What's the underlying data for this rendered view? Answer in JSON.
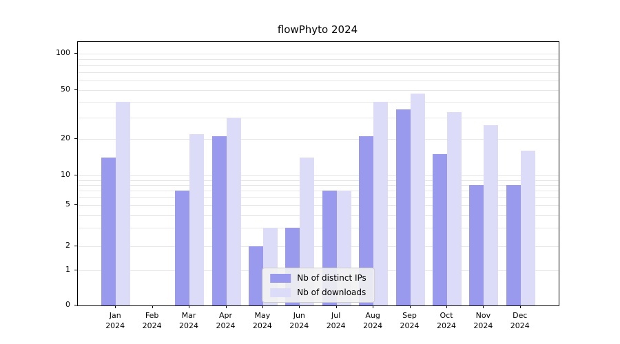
{
  "title": "flowPhyto 2024",
  "colors": {
    "series_ips": "#9999ee",
    "series_downloads": "#dcdcf9",
    "grid": "#e6e6e6",
    "legend_bg": "#f2f2f2",
    "legend_border": "#cccccc",
    "axis": "#000000"
  },
  "chart_data": {
    "type": "bar",
    "title": "flowPhyto 2024",
    "months": [
      "Jan",
      "Feb",
      "Mar",
      "Apr",
      "May",
      "Jun",
      "Jul",
      "Aug",
      "Sep",
      "Oct",
      "Nov",
      "Dec"
    ],
    "year": "2024",
    "categories": [
      "Jan 2024",
      "Feb 2024",
      "Mar 2024",
      "Apr 2024",
      "May 2024",
      "Jun 2024",
      "Jul 2024",
      "Aug 2024",
      "Sep 2024",
      "Oct 2024",
      "Nov 2024",
      "Dec 2024"
    ],
    "series": [
      {
        "name": "Nb of distinct IPs",
        "color": "#9999ee",
        "values": [
          14,
          0,
          7,
          21,
          2,
          3,
          7,
          21,
          35,
          15,
          8,
          8
        ]
      },
      {
        "name": "Nb of downloads",
        "color": "#dcdcf9",
        "values": [
          40,
          0,
          22,
          30,
          3,
          14,
          7,
          40,
          47,
          33,
          26,
          16
        ]
      }
    ],
    "yticks": [
      0,
      1,
      2,
      5,
      10,
      20,
      50,
      100
    ],
    "minor_gridlines": [
      3,
      4,
      6,
      7,
      8,
      9,
      30,
      40,
      60,
      70,
      80,
      90
    ],
    "yscale": "symlog",
    "ylim": [
      0,
      110
    ],
    "xlabel": "",
    "ylabel": "",
    "grid": true,
    "legend_position": "lower center"
  }
}
